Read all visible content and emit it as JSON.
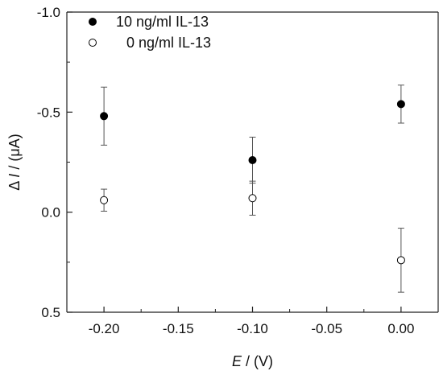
{
  "chart_data": {
    "type": "scatter",
    "xlabel": {
      "var": "E",
      "unit": " / (V)"
    },
    "ylabel": {
      "prefix": "Δ ",
      "var": "I",
      "unit": " / (μA)"
    },
    "xlim": [
      -0.225,
      0.025
    ],
    "ylim": [
      -1.0,
      0.5
    ],
    "y_inverted": true,
    "x_ticks": [
      -0.2,
      -0.15,
      -0.1,
      -0.05,
      0.0
    ],
    "x_tick_labels": [
      "-0.20",
      "-0.15",
      "-0.10",
      "-0.05",
      "0.00"
    ],
    "y_ticks": [
      -1.0,
      -0.5,
      0.0,
      0.5
    ],
    "y_tick_labels": [
      "-1.0",
      "-0.5",
      "0.0",
      "0.5"
    ],
    "grid": false,
    "legend_position": "top-left",
    "series": [
      {
        "name": "10 ng/ml IL-13",
        "marker": "filled-circle",
        "color": "#000000",
        "x": [
          -0.2,
          -0.1,
          0.0
        ],
        "y": [
          -0.48,
          -0.26,
          -0.54
        ],
        "error": [
          0.145,
          0.115,
          0.095
        ]
      },
      {
        "name": "0 ng/ml IL-13",
        "marker": "open-circle",
        "color": "#000000",
        "x": [
          -0.2,
          -0.1,
          0.0
        ],
        "y": [
          -0.06,
          -0.07,
          0.24
        ],
        "error": [
          0.055,
          0.085,
          0.16
        ]
      }
    ]
  }
}
